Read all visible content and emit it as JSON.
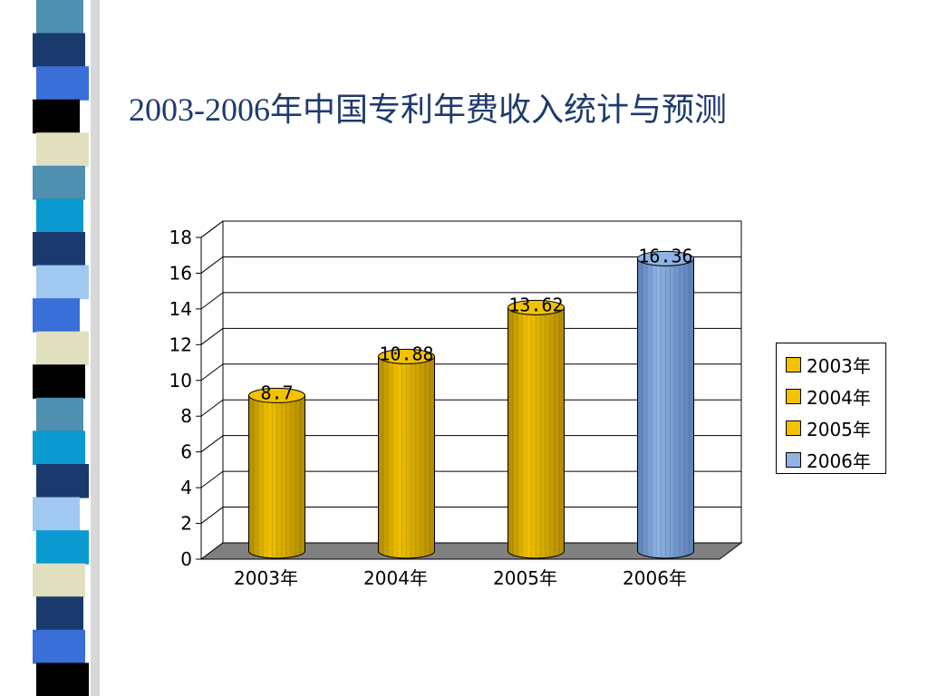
{
  "colors": {
    "gold": "#f2c200",
    "gold_dark": "#b08a00",
    "blue": "#8fb3e3",
    "blue_dark": "#5a7fb8",
    "floor": "#808080",
    "title": "#1f3a6e"
  },
  "stripe_colors": [
    "#4f8fb0",
    "#1a3a6e",
    "#3a6fd8",
    "#000000",
    "#e0e0c0",
    "#4f8fb0",
    "#0a9ad0",
    "#1a3a6e",
    "#a0c8f0",
    "#3a6fd8",
    "#e0e0c0",
    "#000000",
    "#4f8fb0",
    "#0a9ad0",
    "#1a3a6e",
    "#a0c8f0",
    "#0a9ad0",
    "#e0e0c0",
    "#1a3a6e",
    "#3a6fd8",
    "#000000"
  ],
  "chart_data": {
    "type": "bar",
    "title": "2003-2006年中国专利年费收入统计与预测",
    "categories": [
      "2003年",
      "2004年",
      "2005年",
      "2006年"
    ],
    "values": [
      8.7,
      10.88,
      13.62,
      16.36
    ],
    "data_labels": [
      "8.7",
      "10.88",
      "13.62",
      "16.36"
    ],
    "bar_colors": [
      "gold",
      "gold",
      "gold",
      "blue"
    ],
    "ylim": [
      0,
      18
    ],
    "yticks": [
      "0",
      "2",
      "4",
      "6",
      "8",
      "10",
      "12",
      "14",
      "16",
      "18"
    ],
    "grid": true,
    "legend_position": "right",
    "legend": [
      {
        "label": "2003年",
        "color": "gold"
      },
      {
        "label": "2004年",
        "color": "gold"
      },
      {
        "label": "2005年",
        "color": "gold"
      },
      {
        "label": "2006年",
        "color": "blue"
      }
    ]
  }
}
